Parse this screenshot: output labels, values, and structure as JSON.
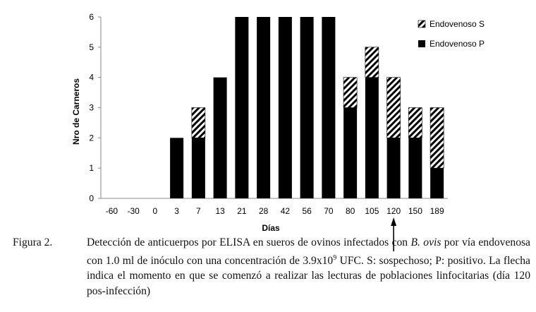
{
  "chart_data": {
    "type": "bar",
    "stacked": true,
    "categories": [
      "-60",
      "-30",
      "0",
      "3",
      "7",
      "13",
      "21",
      "28",
      "42",
      "56",
      "70",
      "80",
      "105",
      "120",
      "150",
      "189"
    ],
    "series": [
      {
        "name": "Endovenoso P",
        "pattern": "solid",
        "values": [
          0,
          0,
          0,
          2,
          2,
          4,
          6,
          6,
          6,
          6,
          6,
          3,
          4,
          2,
          2,
          1
        ]
      },
      {
        "name": "Endovenoso S",
        "pattern": "hatched",
        "values": [
          0,
          0,
          0,
          0,
          1,
          0,
          0,
          0,
          0,
          0,
          0,
          1,
          1,
          2,
          1,
          2
        ]
      }
    ],
    "title": "",
    "xlabel": "Días",
    "ylabel": "Nro de Carneros",
    "ylim": [
      0,
      6
    ],
    "yticks": [
      "0",
      "1",
      "2",
      "3",
      "4",
      "5",
      "6"
    ],
    "grid": false,
    "legend_position": "top-right",
    "arrow_marker_category": "120",
    "colors": {
      "bar": "#000000",
      "hatch_bg": "#ffffff",
      "axis": "#888888"
    }
  },
  "caption": {
    "label": "Figura 2.",
    "text_before_italic": "Detección de anticuerpos por ELISA en sueros de ovinos infectados con ",
    "italic": "B. ovis",
    "text_after_italic": " por vía endovenosa con 1.0 ml de inóculo con una concentración de 3.9x10",
    "superscript": "9",
    "text_end": " UFC. S: sospechoso; P: positivo. La flecha indica el momento en que se comenzó a realizar las lecturas de poblaciones linfocitarias (día 120 pos-infección)"
  }
}
